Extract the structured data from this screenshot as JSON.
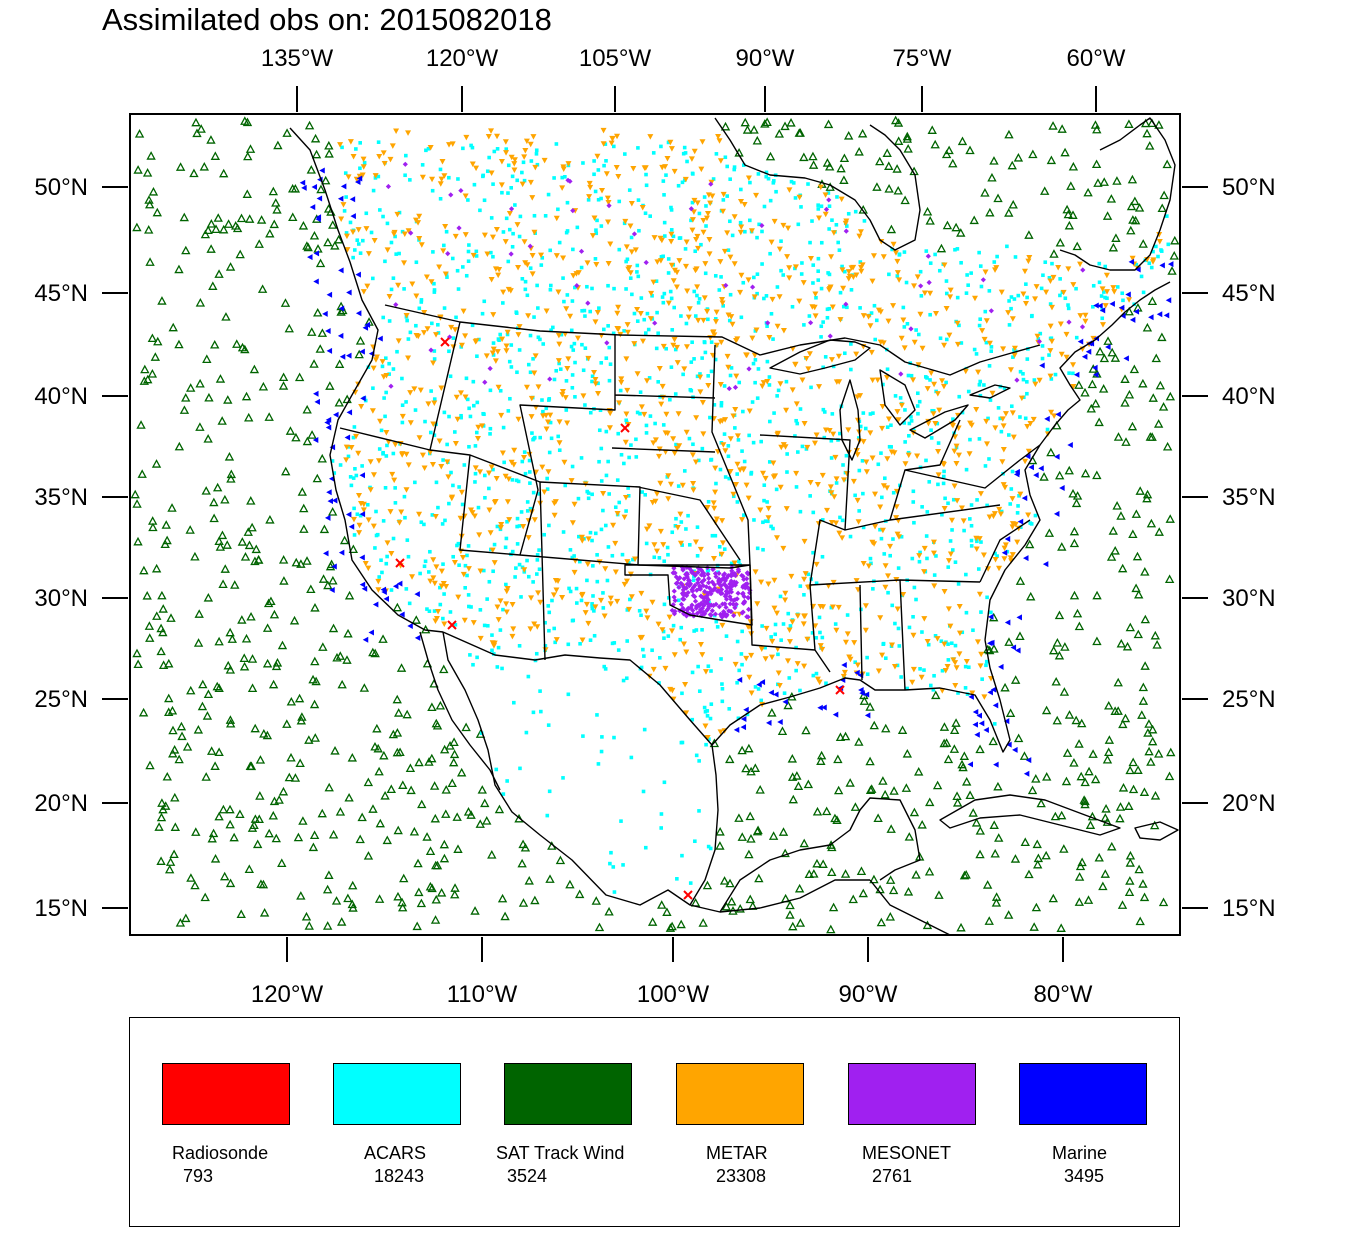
{
  "title": "Assimilated obs on: 2015082018",
  "top_axis_labels": [
    "135°W",
    "120°W",
    "105°W",
    "90°W",
    "75°W",
    "60°W"
  ],
  "bottom_axis_labels": [
    "120°W",
    "110°W",
    "100°W",
    "90°W",
    "80°W"
  ],
  "lat_labels": [
    "50°N",
    "45°N",
    "40°N",
    "35°N",
    "30°N",
    "25°N",
    "20°N",
    "15°N"
  ],
  "legend": [
    {
      "name": "Radiosonde",
      "count": "793",
      "color": "#ff0000",
      "marker": "x-cross"
    },
    {
      "name": "ACARS",
      "count": "18243",
      "color": "#00ffff",
      "marker": "square-dot"
    },
    {
      "name": "SAT Track Wind",
      "count": "3524",
      "color": "#006400",
      "marker": "triangle-up-open"
    },
    {
      "name": "METAR",
      "count": "23308",
      "color": "#ffa500",
      "marker": "triangle-down-filled"
    },
    {
      "name": "MESONET",
      "count": "2761",
      "color": "#a020f0",
      "marker": "diamond-filled"
    },
    {
      "name": "Marine",
      "count": "3495",
      "color": "#0000ff",
      "marker": "triangle-left-filled"
    }
  ]
}
